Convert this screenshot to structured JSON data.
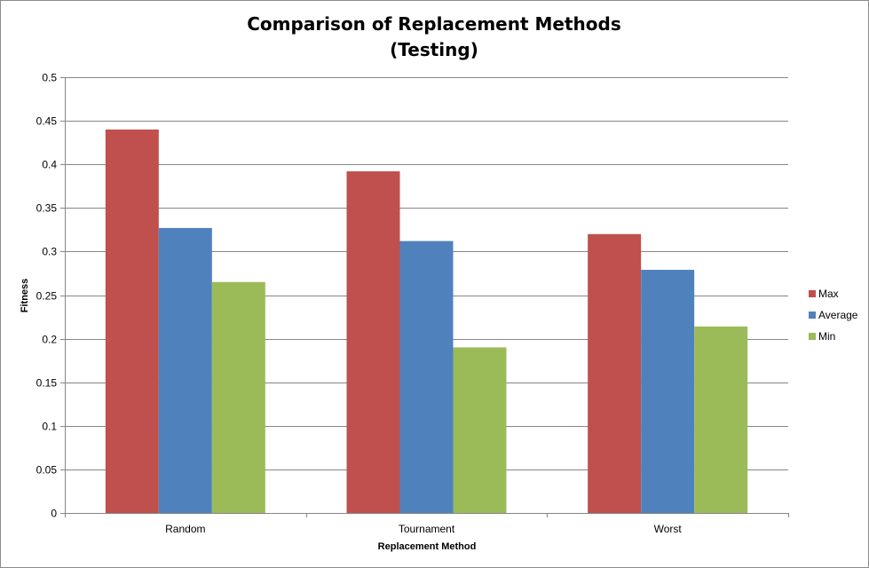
{
  "chart_data": {
    "type": "bar",
    "title": "Comparison of Replacement Methods",
    "subtitle": "(Testing)",
    "xlabel": "Replacement Method",
    "ylabel": "Fitness",
    "categories": [
      "Random",
      "Tournament",
      "Worst"
    ],
    "series": [
      {
        "name": "Max",
        "color": "#c0504d",
        "values": [
          0.44,
          0.392,
          0.32
        ]
      },
      {
        "name": "Average",
        "color": "#4f81bd",
        "values": [
          0.327,
          0.312,
          0.279
        ]
      },
      {
        "name": "Min",
        "color": "#9bbb59",
        "values": [
          0.265,
          0.19,
          0.214
        ]
      }
    ],
    "ylim": [
      0,
      0.5
    ],
    "yticks": [
      "0",
      "0.05",
      "0.1",
      "0.15",
      "0.2",
      "0.25",
      "0.3",
      "0.35",
      "0.4",
      "0.45",
      "0.5"
    ],
    "grid": true,
    "legend_position": "right"
  }
}
